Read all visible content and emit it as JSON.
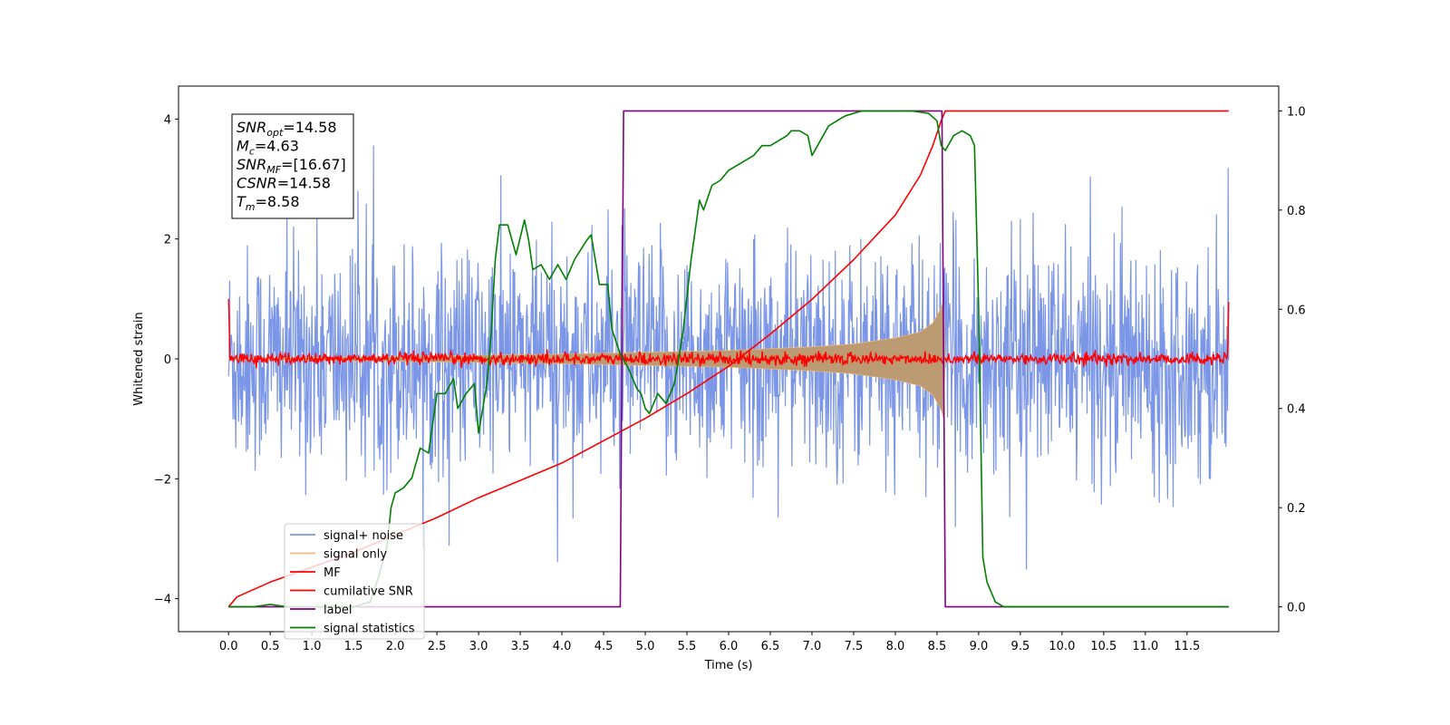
{
  "chart_data": {
    "type": "line",
    "title": "",
    "xlabel": "Time (s)",
    "ylabel": "Whitened strain",
    "y2label": "",
    "xlim": [
      -0.6,
      12.6
    ],
    "ylim": [
      -4.55,
      4.55
    ],
    "y2lim": [
      -0.05,
      1.05
    ],
    "x_ticks": [
      0.0,
      0.5,
      1.0,
      1.5,
      2.0,
      2.5,
      3.0,
      3.5,
      4.0,
      4.5,
      5.0,
      5.5,
      6.0,
      6.5,
      7.0,
      7.5,
      8.0,
      8.5,
      9.0,
      9.5,
      10.0,
      10.5,
      11.0,
      11.5
    ],
    "x_tick_labels": [
      "0.0",
      "0.5",
      "1.0",
      "1.5",
      "2.0",
      "2.5",
      "3.0",
      "3.5",
      "4.0",
      "4.5",
      "5.0",
      "5.5",
      "6.0",
      "6.5",
      "7.0",
      "7.5",
      "8.0",
      "8.5",
      "9.0",
      "9.5",
      "10.0",
      "10.5",
      "11.0",
      "11.5"
    ],
    "y_ticks": [
      -4,
      -2,
      0,
      2,
      4
    ],
    "y_tick_labels": [
      "−4",
      "−2",
      "0",
      "2",
      "4"
    ],
    "y2_ticks": [
      0.0,
      0.2,
      0.4,
      0.6,
      0.8,
      1.0
    ],
    "y2_tick_labels": [
      "0.0",
      "0.2",
      "0.4",
      "0.6",
      "0.8",
      "1.0"
    ],
    "grid": false,
    "legend_position": "lower-left",
    "annotation": {
      "lines": [
        {
          "base": "SNR",
          "sub": "opt",
          "rest": "=14.58"
        },
        {
          "base": "M",
          "sub": "c",
          "rest": "=4.63"
        },
        {
          "base": "SNR",
          "sub": "MF",
          "rest": "=[16.67]"
        },
        {
          "base": "CSNR",
          "sub": "",
          "rest": "=14.58"
        },
        {
          "base": "T",
          "sub": "m",
          "rest": "=8.58"
        }
      ]
    },
    "series": [
      {
        "name": "signal+ noise",
        "color": "#7b96e6",
        "axis": "left",
        "kind": "noise",
        "x_range": [
          0.0,
          12.0
        ],
        "amplitude_std": 1.1,
        "approx_extremes": [
          -4.15,
          4.05
        ]
      },
      {
        "name": "signal only",
        "color": "#f7b97a",
        "fill_color": "#bc9b72",
        "axis": "left",
        "kind": "chirp-envelope",
        "points": [
          [
            0.0,
            0.01
          ],
          [
            2.0,
            0.04
          ],
          [
            4.0,
            0.08
          ],
          [
            6.0,
            0.14
          ],
          [
            7.0,
            0.2
          ],
          [
            7.5,
            0.25
          ],
          [
            8.0,
            0.35
          ],
          [
            8.3,
            0.45
          ],
          [
            8.45,
            0.6
          ],
          [
            8.55,
            0.85
          ],
          [
            8.58,
            1.0
          ],
          [
            8.6,
            0.0
          ]
        ]
      },
      {
        "name": "MF",
        "color": "#ff0000",
        "axis": "left",
        "kind": "noise-small",
        "x_range": [
          0.0,
          12.0
        ],
        "amplitude_std": 0.05,
        "edge_values": [
          1.0,
          0.95
        ]
      },
      {
        "name": "cumilative SNR",
        "color": "#ff0000",
        "axis": "right",
        "points": [
          [
            0.0,
            0.0
          ],
          [
            0.1,
            0.02
          ],
          [
            0.5,
            0.05
          ],
          [
            1.0,
            0.08
          ],
          [
            1.5,
            0.11
          ],
          [
            2.0,
            0.145
          ],
          [
            2.5,
            0.18
          ],
          [
            3.0,
            0.22
          ],
          [
            3.5,
            0.255
          ],
          [
            4.0,
            0.29
          ],
          [
            4.5,
            0.335
          ],
          [
            5.0,
            0.38
          ],
          [
            5.5,
            0.43
          ],
          [
            6.0,
            0.485
          ],
          [
            6.5,
            0.55
          ],
          [
            7.0,
            0.62
          ],
          [
            7.5,
            0.7
          ],
          [
            8.0,
            0.79
          ],
          [
            8.3,
            0.87
          ],
          [
            8.45,
            0.93
          ],
          [
            8.55,
            0.98
          ],
          [
            8.6,
            1.0
          ],
          [
            12.0,
            1.0
          ]
        ]
      },
      {
        "name": "label",
        "color": "#800080",
        "axis": "right",
        "points": [
          [
            0.0,
            0.0
          ],
          [
            4.7,
            0.0
          ],
          [
            4.74,
            1.0
          ],
          [
            8.56,
            1.0
          ],
          [
            8.6,
            0.0
          ],
          [
            12.0,
            0.0
          ]
        ]
      },
      {
        "name": "signal statistics",
        "color": "#008000",
        "axis": "right",
        "points": [
          [
            0.0,
            0.0
          ],
          [
            0.3,
            0.0
          ],
          [
            0.5,
            0.005
          ],
          [
            0.7,
            0.0
          ],
          [
            1.0,
            0.0
          ],
          [
            1.3,
            0.0
          ],
          [
            1.5,
            0.0
          ],
          [
            1.7,
            0.01
          ],
          [
            1.8,
            0.06
          ],
          [
            1.9,
            0.12
          ],
          [
            1.95,
            0.2
          ],
          [
            2.0,
            0.23
          ],
          [
            2.1,
            0.24
          ],
          [
            2.2,
            0.26
          ],
          [
            2.3,
            0.32
          ],
          [
            2.4,
            0.31
          ],
          [
            2.5,
            0.43
          ],
          [
            2.6,
            0.43
          ],
          [
            2.7,
            0.46
          ],
          [
            2.75,
            0.4
          ],
          [
            2.85,
            0.43
          ],
          [
            2.95,
            0.45
          ],
          [
            3.0,
            0.35
          ],
          [
            3.05,
            0.4
          ],
          [
            3.1,
            0.45
          ],
          [
            3.15,
            0.55
          ],
          [
            3.2,
            0.7
          ],
          [
            3.25,
            0.77
          ],
          [
            3.35,
            0.77
          ],
          [
            3.45,
            0.71
          ],
          [
            3.55,
            0.78
          ],
          [
            3.6,
            0.74
          ],
          [
            3.65,
            0.68
          ],
          [
            3.75,
            0.69
          ],
          [
            3.85,
            0.66
          ],
          [
            3.95,
            0.69
          ],
          [
            4.05,
            0.66
          ],
          [
            4.15,
            0.7
          ],
          [
            4.3,
            0.74
          ],
          [
            4.35,
            0.75
          ],
          [
            4.45,
            0.65
          ],
          [
            4.55,
            0.65
          ],
          [
            4.6,
            0.56
          ],
          [
            4.7,
            0.51
          ],
          [
            4.8,
            0.48
          ],
          [
            4.9,
            0.44
          ],
          [
            4.95,
            0.43
          ],
          [
            5.0,
            0.4
          ],
          [
            5.05,
            0.39
          ],
          [
            5.15,
            0.43
          ],
          [
            5.25,
            0.41
          ],
          [
            5.35,
            0.45
          ],
          [
            5.45,
            0.55
          ],
          [
            5.55,
            0.7
          ],
          [
            5.65,
            0.82
          ],
          [
            5.7,
            0.8
          ],
          [
            5.8,
            0.85
          ],
          [
            5.9,
            0.86
          ],
          [
            6.0,
            0.88
          ],
          [
            6.1,
            0.89
          ],
          [
            6.2,
            0.9
          ],
          [
            6.3,
            0.91
          ],
          [
            6.4,
            0.93
          ],
          [
            6.5,
            0.93
          ],
          [
            6.6,
            0.94
          ],
          [
            6.7,
            0.95
          ],
          [
            6.75,
            0.96
          ],
          [
            6.85,
            0.96
          ],
          [
            6.95,
            0.95
          ],
          [
            7.0,
            0.91
          ],
          [
            7.1,
            0.94
          ],
          [
            7.2,
            0.97
          ],
          [
            7.3,
            0.98
          ],
          [
            7.4,
            0.99
          ],
          [
            7.6,
            1.0
          ],
          [
            7.8,
            1.0
          ],
          [
            8.0,
            1.0
          ],
          [
            8.2,
            1.0
          ],
          [
            8.4,
            0.995
          ],
          [
            8.5,
            0.98
          ],
          [
            8.55,
            0.93
          ],
          [
            8.6,
            0.92
          ],
          [
            8.7,
            0.95
          ],
          [
            8.8,
            0.96
          ],
          [
            8.9,
            0.95
          ],
          [
            8.95,
            0.93
          ],
          [
            9.0,
            0.6
          ],
          [
            9.05,
            0.1
          ],
          [
            9.1,
            0.05
          ],
          [
            9.2,
            0.01
          ],
          [
            9.3,
            0.0
          ],
          [
            10.0,
            0.0
          ],
          [
            11.0,
            0.0
          ],
          [
            12.0,
            0.0
          ]
        ]
      }
    ]
  }
}
